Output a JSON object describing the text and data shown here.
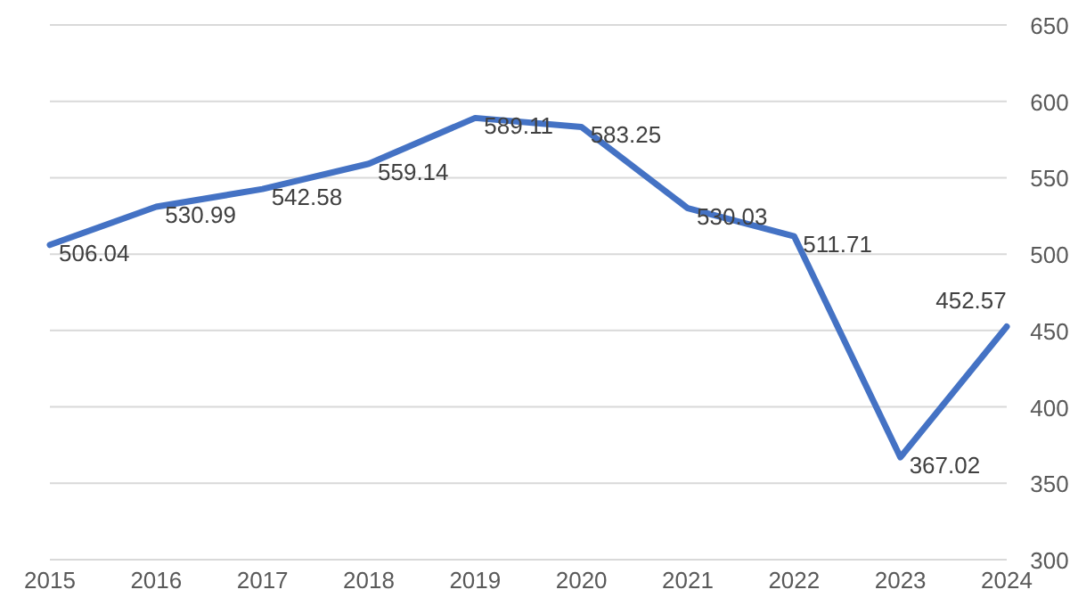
{
  "chart_data": {
    "type": "line",
    "categories": [
      "2015",
      "2016",
      "2017",
      "2018",
      "2019",
      "2020",
      "2021",
      "2022",
      "2023",
      "2024"
    ],
    "series": [
      {
        "color": "#4472c4",
        "values": [
          506.04,
          530.99,
          542.58,
          559.14,
          589.11,
          583.25,
          530.03,
          511.71,
          367.02,
          452.57
        ]
      }
    ],
    "ylim": [
      300,
      650
    ],
    "yticks": [
      300,
      350,
      400,
      450,
      500,
      550,
      600,
      650
    ],
    "grid": "y",
    "data_labels": true,
    "marker": "none",
    "line_style": "solid"
  }
}
